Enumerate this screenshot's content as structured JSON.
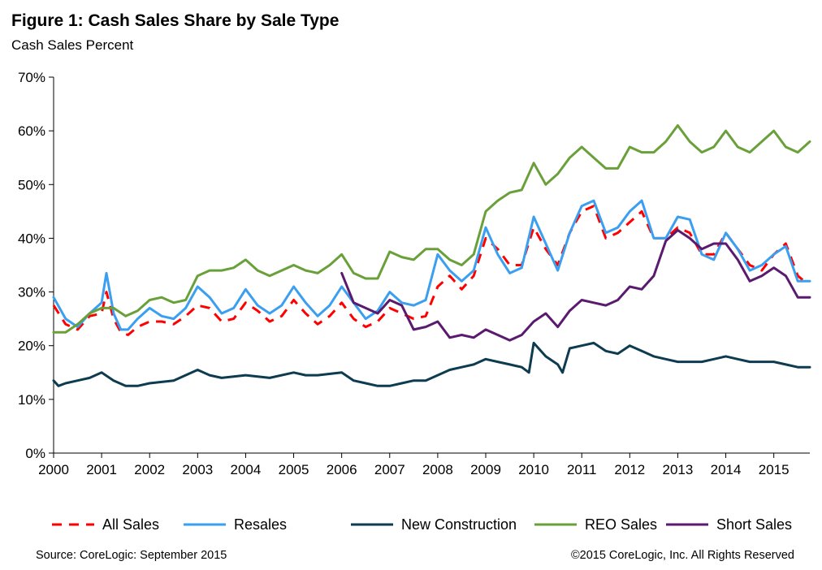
{
  "header": {
    "title": "Figure 1: Cash Sales Share by Sale Type",
    "subtitle": "Cash Sales Percent"
  },
  "footer": {
    "source": "Source: CoreLogic: September 2015",
    "copyright": "©2015 CoreLogic, Inc. All Rights Reserved"
  },
  "chart_data": {
    "type": "line",
    "title": "Figure 1: Cash Sales Share by Sale Type",
    "subtitle": "Cash Sales Percent",
    "xlabel": "",
    "ylabel": "",
    "xlim": [
      2000.0,
      2015.75
    ],
    "ylim": [
      0,
      70
    ],
    "grid": false,
    "legend_position": "bottom",
    "x_ticks": [
      "2000",
      "2001",
      "2002",
      "2003",
      "2004",
      "2005",
      "2006",
      "2007",
      "2008",
      "2009",
      "2010",
      "2011",
      "2012",
      "2013",
      "2014",
      "2015"
    ],
    "y_ticks": [
      "0%",
      "10%",
      "20%",
      "30%",
      "40%",
      "50%",
      "60%",
      "70%"
    ],
    "series": [
      {
        "name": "All Sales",
        "color": "#ff0000",
        "style": "dashed",
        "x": [
          2000.0,
          2000.25,
          2000.5,
          2000.75,
          2001.0,
          2001.1,
          2001.25,
          2001.4,
          2001.55,
          2001.75,
          2002.0,
          2002.25,
          2002.5,
          2002.75,
          2003.0,
          2003.25,
          2003.5,
          2003.75,
          2004.0,
          2004.25,
          2004.5,
          2004.75,
          2005.0,
          2005.25,
          2005.5,
          2005.75,
          2006.0,
          2006.25,
          2006.5,
          2006.75,
          2007.0,
          2007.25,
          2007.5,
          2007.75,
          2008.0,
          2008.25,
          2008.5,
          2008.75,
          2009.0,
          2009.25,
          2009.5,
          2009.75,
          2010.0,
          2010.25,
          2010.5,
          2010.75,
          2011.0,
          2011.25,
          2011.5,
          2011.75,
          2012.0,
          2012.25,
          2012.5,
          2012.75,
          2013.0,
          2013.25,
          2013.5,
          2013.75,
          2014.0,
          2014.25,
          2014.5,
          2014.75,
          2015.0,
          2015.25,
          2015.5,
          2015.7
        ],
        "values": [
          27.5,
          24,
          23,
          25.5,
          26,
          30,
          25,
          22.5,
          22,
          23.5,
          24.5,
          24.5,
          24,
          25.5,
          27.5,
          27,
          24.5,
          25,
          28,
          26.5,
          24.5,
          25.5,
          28.5,
          26,
          24,
          25.5,
          28,
          25,
          23.5,
          24.5,
          27,
          26,
          25,
          25.5,
          31,
          33,
          30.5,
          33,
          40,
          38,
          35,
          35,
          42,
          38,
          35,
          41,
          45,
          46,
          40,
          41,
          43,
          45,
          40,
          40,
          42,
          41,
          37,
          37,
          41,
          38,
          35,
          34,
          37,
          39,
          33,
          31.5
        ]
      },
      {
        "name": "Resales",
        "color": "#3a9ff0",
        "style": "solid",
        "x": [
          2000.0,
          2000.25,
          2000.5,
          2000.75,
          2001.0,
          2001.1,
          2001.25,
          2001.4,
          2001.55,
          2001.75,
          2002.0,
          2002.25,
          2002.5,
          2002.75,
          2003.0,
          2003.25,
          2003.5,
          2003.75,
          2004.0,
          2004.25,
          2004.5,
          2004.75,
          2005.0,
          2005.25,
          2005.5,
          2005.75,
          2006.0,
          2006.25,
          2006.5,
          2006.75,
          2007.0,
          2007.25,
          2007.5,
          2007.75,
          2008.0,
          2008.25,
          2008.5,
          2008.75,
          2009.0,
          2009.25,
          2009.5,
          2009.75,
          2010.0,
          2010.25,
          2010.5,
          2010.75,
          2011.0,
          2011.25,
          2011.5,
          2011.75,
          2012.0,
          2012.25,
          2012.5,
          2012.75,
          2013.0,
          2013.25,
          2013.5,
          2013.75,
          2014.0,
          2014.25,
          2014.5,
          2014.75,
          2015.0,
          2015.25,
          2015.5,
          2015.75
        ],
        "values": [
          29,
          25,
          23.5,
          26,
          28,
          33.5,
          26,
          23,
          23,
          25,
          27,
          25.5,
          25,
          27,
          31,
          29,
          26,
          27,
          30.5,
          27.5,
          26,
          27.5,
          31,
          28,
          25.5,
          27.5,
          31,
          28,
          25,
          26.5,
          30,
          28,
          27.5,
          28.5,
          37,
          34,
          32,
          34,
          42,
          37,
          33.5,
          34.5,
          44,
          39,
          34,
          41,
          46,
          47,
          41,
          42,
          45,
          47,
          40,
          40,
          44,
          43.5,
          37,
          36,
          41,
          38,
          34,
          35,
          37,
          38.5,
          32,
          32
        ]
      },
      {
        "name": "New Construction",
        "color": "#0d3b50",
        "style": "solid",
        "x": [
          2000.0,
          2000.1,
          2000.25,
          2000.5,
          2000.75,
          2001.0,
          2001.25,
          2001.5,
          2001.75,
          2002.0,
          2002.5,
          2003.0,
          2003.25,
          2003.5,
          2004.0,
          2004.5,
          2005.0,
          2005.25,
          2005.5,
          2006.0,
          2006.25,
          2006.5,
          2006.75,
          2007.0,
          2007.25,
          2007.5,
          2007.75,
          2008.0,
          2008.25,
          2008.5,
          2008.75,
          2009.0,
          2009.25,
          2009.5,
          2009.75,
          2009.9,
          2010.0,
          2010.25,
          2010.5,
          2010.6,
          2010.75,
          2011.0,
          2011.25,
          2011.5,
          2011.75,
          2012.0,
          2012.25,
          2012.5,
          2012.75,
          2013.0,
          2013.25,
          2013.5,
          2013.75,
          2014.0,
          2014.25,
          2014.5,
          2014.75,
          2015.0,
          2015.25,
          2015.5,
          2015.75
        ],
        "values": [
          13.5,
          12.5,
          13,
          13.5,
          14,
          15,
          13.5,
          12.5,
          12.5,
          13,
          13.5,
          15.5,
          14.5,
          14,
          14.5,
          14,
          15,
          14.5,
          14.5,
          15,
          13.5,
          13,
          12.5,
          12.5,
          13,
          13.5,
          13.5,
          14.5,
          15.5,
          16,
          16.5,
          17.5,
          17,
          16.5,
          16,
          15,
          20.5,
          18,
          16.5,
          15,
          19.5,
          20,
          20.5,
          19,
          18.5,
          20,
          19,
          18,
          17.5,
          17,
          17,
          17,
          17.5,
          18,
          17.5,
          17,
          17,
          17,
          16.5,
          16,
          16
        ]
      },
      {
        "name": "REO Sales",
        "color": "#6aa03a",
        "style": "solid",
        "x": [
          2000.0,
          2000.25,
          2000.5,
          2000.75,
          2001.0,
          2001.25,
          2001.5,
          2001.75,
          2002.0,
          2002.25,
          2002.5,
          2002.75,
          2003.0,
          2003.25,
          2003.5,
          2003.75,
          2004.0,
          2004.25,
          2004.5,
          2004.75,
          2005.0,
          2005.25,
          2005.5,
          2005.75,
          2006.0,
          2006.25,
          2006.5,
          2006.75,
          2007.0,
          2007.25,
          2007.5,
          2007.75,
          2008.0,
          2008.25,
          2008.5,
          2008.75,
          2009.0,
          2009.25,
          2009.5,
          2009.75,
          2010.0,
          2010.25,
          2010.5,
          2010.75,
          2011.0,
          2011.25,
          2011.5,
          2011.75,
          2012.0,
          2012.25,
          2012.5,
          2012.75,
          2013.0,
          2013.25,
          2013.5,
          2013.75,
          2014.0,
          2014.25,
          2014.5,
          2014.75,
          2015.0,
          2015.25,
          2015.5,
          2015.75
        ],
        "values": [
          22.5,
          22.5,
          24,
          26,
          27,
          27,
          25.5,
          26.5,
          28.5,
          29,
          28,
          28.5,
          33,
          34,
          34,
          34.5,
          36,
          34,
          33,
          34,
          35,
          34,
          33.5,
          35,
          37,
          33.5,
          32.5,
          32.5,
          37.5,
          36.5,
          36,
          38,
          38,
          36,
          35,
          37,
          45,
          47,
          48.5,
          49,
          54,
          50,
          52,
          55,
          57,
          55,
          53,
          53,
          57,
          56,
          56,
          58,
          61,
          58,
          56,
          57,
          60,
          57,
          56,
          58,
          60,
          57,
          56,
          58
        ]
      },
      {
        "name": "Short Sales",
        "color": "#5a1a6e",
        "style": "solid",
        "x": [
          2006.0,
          2006.25,
          2006.5,
          2006.75,
          2007.0,
          2007.25,
          2007.5,
          2007.75,
          2008.0,
          2008.25,
          2008.5,
          2008.75,
          2009.0,
          2009.25,
          2009.5,
          2009.75,
          2010.0,
          2010.25,
          2010.5,
          2010.75,
          2011.0,
          2011.25,
          2011.5,
          2011.75,
          2012.0,
          2012.25,
          2012.5,
          2012.75,
          2013.0,
          2013.25,
          2013.5,
          2013.75,
          2014.0,
          2014.25,
          2014.5,
          2014.75,
          2015.0,
          2015.25,
          2015.5,
          2015.75
        ],
        "values": [
          33.5,
          28,
          27,
          26,
          28.5,
          27.5,
          23,
          23.5,
          24.5,
          21.5,
          22,
          21.5,
          23,
          22,
          21,
          22,
          24.5,
          26,
          23.5,
          26.5,
          28.5,
          28,
          27.5,
          28.5,
          31,
          30.5,
          33,
          39.5,
          41.5,
          40,
          38,
          39,
          39,
          36,
          32,
          33,
          34.5,
          33,
          29,
          29
        ]
      }
    ]
  }
}
